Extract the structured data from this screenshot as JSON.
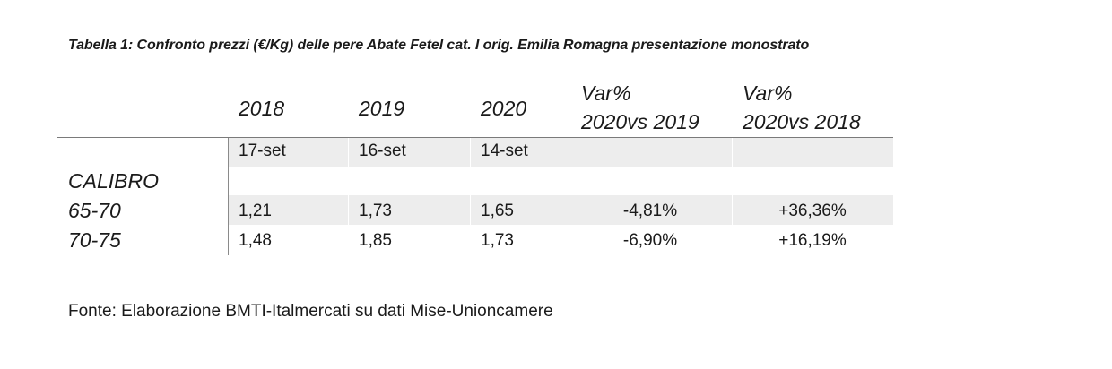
{
  "caption": "Tabella 1: Confronto prezzi (€/Kg) delle pere Abate Fetel cat. I orig. Emilia Romagna presentazione monostrato",
  "table": {
    "headers": {
      "years": [
        "2018",
        "2019",
        "2020"
      ],
      "var1": [
        "Var%",
        "2020vs 2019"
      ],
      "var2": [
        "Var%",
        "2020vs 2018"
      ]
    },
    "dates": [
      "17-set",
      "16-set",
      "14-set"
    ],
    "row_group_label": "CALIBRO",
    "rows": [
      {
        "label": "65-70",
        "values": [
          "1,21",
          "1,73",
          "1,65"
        ],
        "var_2019": "-4,81%",
        "var_2018": "+36,36%"
      },
      {
        "label": "70-75",
        "values": [
          "1,48",
          "1,85",
          "1,73"
        ],
        "var_2019": "-6,90%",
        "var_2018": "+16,19%"
      }
    ]
  },
  "source": "Fonte: Elaborazione BMTI-Italmercati su dati Mise-Unioncamere"
}
